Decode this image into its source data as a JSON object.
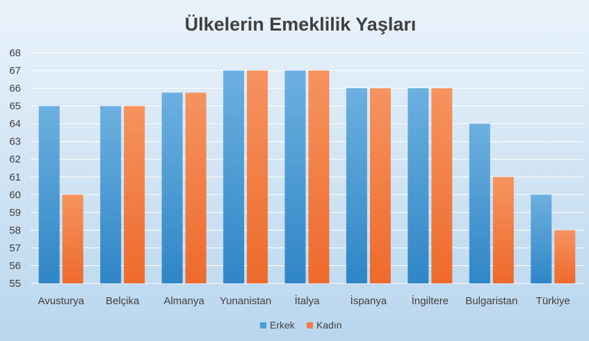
{
  "chart_data": {
    "type": "bar",
    "title": "Ülkelerin Emeklilik Yaşları",
    "xlabel": "",
    "ylabel": "",
    "ylim": [
      55,
      68
    ],
    "yticks": [
      55,
      56,
      57,
      58,
      59,
      60,
      61,
      62,
      63,
      64,
      65,
      66,
      67,
      68
    ],
    "grid": true,
    "legend_position": "bottom",
    "categories": [
      "Avusturya",
      "Belçika",
      "Almanya",
      "Yunanistan",
      "İtalya",
      "İspanya",
      "İngiltere",
      "Bulgaristan",
      "Türkiye"
    ],
    "series": [
      {
        "name": "Erkek",
        "color": "#4b9fd8",
        "values": [
          65,
          65,
          65.75,
          67,
          67,
          66,
          66,
          64,
          60
        ]
      },
      {
        "name": "Kadın",
        "color": "#f47f44",
        "values": [
          60,
          65,
          65.75,
          67,
          67,
          66,
          66,
          61,
          58
        ]
      }
    ]
  }
}
